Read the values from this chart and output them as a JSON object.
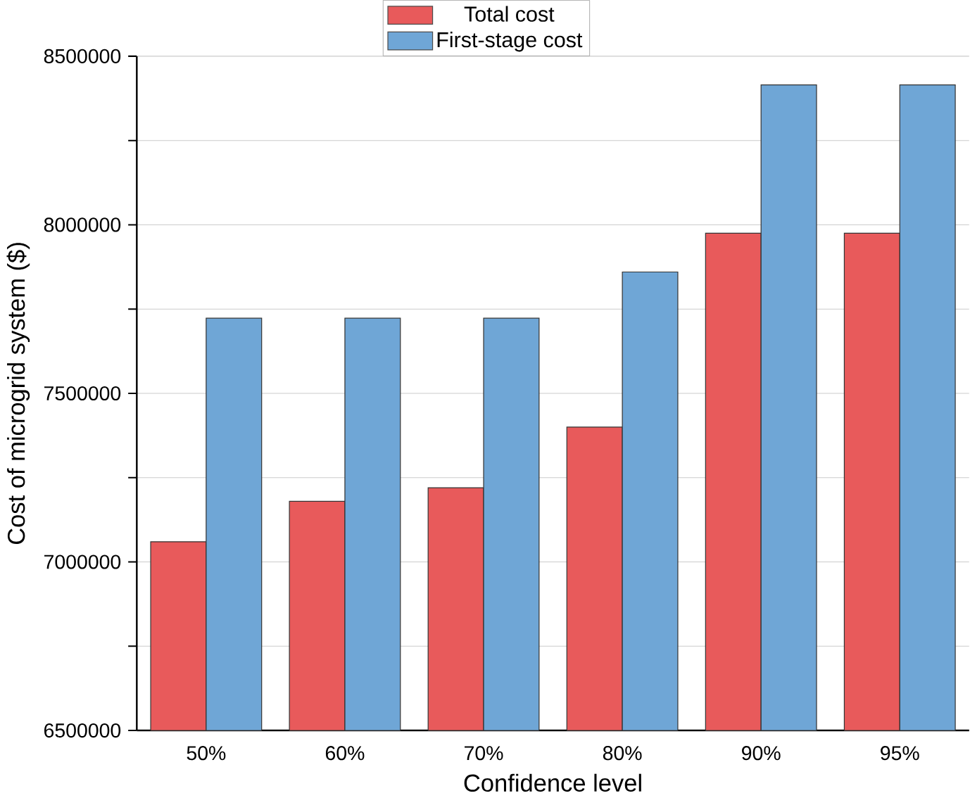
{
  "chart_data": {
    "type": "bar",
    "xlabel": "Confidence level",
    "ylabel": "Cost of microgrid system ($)",
    "categories": [
      "50%",
      "60%",
      "70%",
      "80%",
      "90%",
      "95%"
    ],
    "series": [
      {
        "name": "Total cost",
        "color": "#e85a5b",
        "values": [
          7060000,
          7180000,
          7220000,
          7400000,
          7975000,
          7975000
        ]
      },
      {
        "name": "First-stage cost",
        "color": "#6fa6d6",
        "values": [
          7723000,
          7723000,
          7723000,
          7860000,
          8415000,
          8415000
        ]
      }
    ],
    "ylim": [
      6500000,
      8500000
    ],
    "yticks": [
      6500000,
      {
        "value": 6750000,
        "label": null
      },
      7000000,
      {
        "value": 7250000,
        "label": null
      },
      7500000,
      {
        "value": 7750000,
        "label": null
      },
      8000000,
      {
        "value": 8250000,
        "label": null
      },
      8500000
    ],
    "grid": "y",
    "legend": "top"
  }
}
